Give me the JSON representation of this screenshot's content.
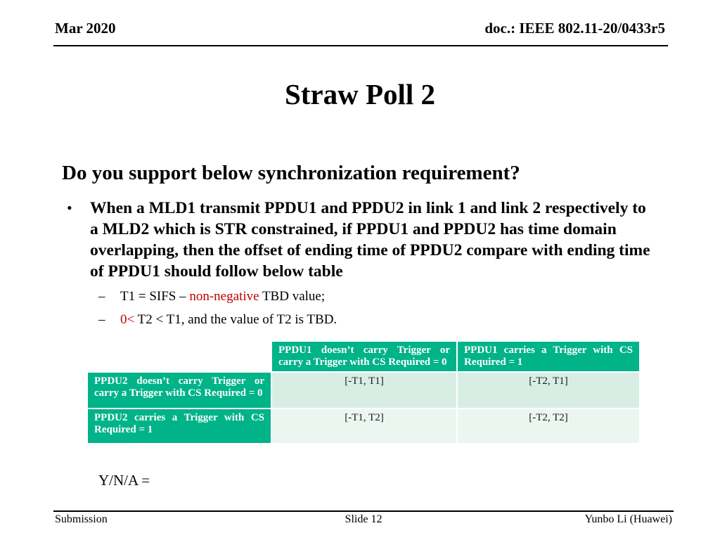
{
  "header": {
    "date": "Mar 2020",
    "doc": "doc.: IEEE 802.11-20/0433r5"
  },
  "title": "Straw Poll 2",
  "question": "Do you support below synchronization requirement?",
  "bullet": {
    "marker": "•",
    "text": "When a MLD1 transmit PPDU1 and PPDU2 in link 1 and link 2 respectively to a MLD2 which is STR constrained, if PPDU1 and PPDU2 has time domain overlapping, then the offset of ending time of PPDU2 compare with ending time of PPDU1 should follow below table"
  },
  "sub_bullets": [
    {
      "marker": "–",
      "pre": "T1 = SIFS – ",
      "red": "non-negative",
      "post": " TBD value;"
    },
    {
      "marker": "–",
      "pre": "",
      "red": "0<",
      "post": " T2 < T1, and the value of T2 is TBD."
    }
  ],
  "table": {
    "col_headers": [
      "PPDU1 doesn’t carry Trigger or carry a Trigger with CS Required = 0",
      "PPDU1 carries a Trigger with CS Required = 1"
    ],
    "rows": [
      {
        "header": "PPDU2 doesn’t carry Trigger or carry a Trigger with CS Required = 0",
        "cells": [
          "[-T1, T1]",
          "[-T2, T1]"
        ]
      },
      {
        "header": "PPDU2 carries a Trigger with CS Required = 1",
        "cells": [
          "[-T1, T2]",
          "[-T2, T2]"
        ]
      }
    ]
  },
  "yna_label": "Y/N/A =",
  "footer": {
    "left": "Submission",
    "center": "Slide 12",
    "right": "Yunbo Li (Huawei)"
  },
  "colors": {
    "table_header_green": "#00b388",
    "table_row1_bg": "#d8eee5",
    "table_row2_bg": "#ebf6f1",
    "accent_red": "#c00000"
  }
}
